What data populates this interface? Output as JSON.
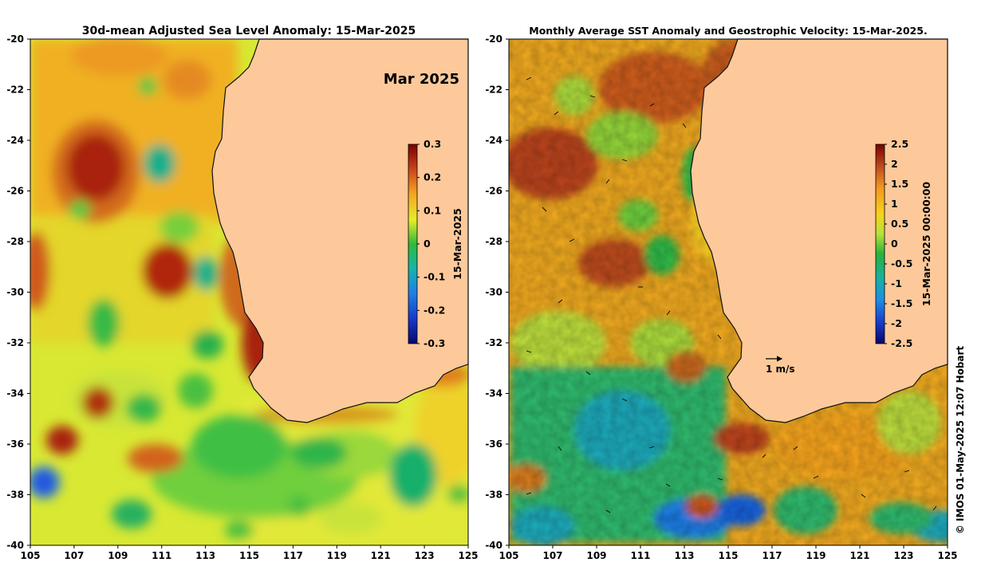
{
  "credit": "© IMOS 01-May-2025 12:07 Hobart",
  "chart_data": [
    {
      "type": "heatmap",
      "title": "30d-mean Adjusted Sea Level Anomaly: 15-Mar-2025",
      "annotation": "Mar 2025",
      "colorbar_label": "15-Mar-2025",
      "colorbar_ticks": [
        "0.3",
        "0.2",
        "0.1",
        "0",
        "-0.1",
        "-0.2",
        "-0.3"
      ],
      "colorbar_range": [
        -0.3,
        0.3
      ],
      "x_range": [
        105,
        125
      ],
      "y_range": [
        -40,
        -20
      ],
      "x_ticks": [
        105,
        107,
        109,
        111,
        113,
        115,
        117,
        119,
        121,
        123,
        125
      ],
      "y_ticks": [
        -20,
        -22,
        -24,
        -26,
        -28,
        -30,
        -32,
        -34,
        -36,
        -38,
        -40
      ],
      "features": [
        {
          "name": "warm eddy",
          "lon": 108.3,
          "lat": -25.4,
          "value": 0.28
        },
        {
          "name": "warm eddy",
          "lon": 110.9,
          "lat": -29.6,
          "value": 0.3
        },
        {
          "name": "warm eddy",
          "lon": 108.1,
          "lat": -34.4,
          "value": 0.24
        },
        {
          "name": "warm eddy",
          "lon": 106.4,
          "lat": -35.9,
          "value": 0.26
        },
        {
          "name": "warm eddy",
          "lon": 105.3,
          "lat": -29.0,
          "value": 0.2
        },
        {
          "name": "warm eddy",
          "lon": 111.0,
          "lat": -36.6,
          "value": 0.18
        },
        {
          "name": "warm eddy",
          "lon": 111.6,
          "lat": -21.0,
          "value": 0.16
        },
        {
          "name": "cold eddy",
          "lon": 110.6,
          "lat": -24.9,
          "value": -0.05
        },
        {
          "name": "cold eddy",
          "lon": 112.9,
          "lat": -29.3,
          "value": -0.05
        },
        {
          "name": "cold eddy",
          "lon": 105.6,
          "lat": -37.6,
          "value": -0.18
        },
        {
          "name": "cold eddy",
          "lon": 122.5,
          "lat": -37.5,
          "value": -0.02
        },
        {
          "name": "cold eddy",
          "lon": 109.0,
          "lat": -38.8,
          "value": -0.02
        },
        {
          "name": "cold eddy",
          "lon": 113.1,
          "lat": -32.0,
          "value": -0.03
        },
        {
          "name": "cold eddy",
          "lon": 116.4,
          "lat": -37.0,
          "value": -0.02
        },
        {
          "name": "cold eddy",
          "lon": 110.1,
          "lat": -34.9,
          "value": -0.03
        },
        {
          "name": "cold eddy",
          "lon": 114.4,
          "lat": -37.5,
          "value": -0.04
        }
      ]
    },
    {
      "type": "heatmap",
      "title": "Monthly Average SST Anomaly  and Geostrophic Velocity: 15-Mar-2025.",
      "vector_scale_label": "1 m/s",
      "vector_scale_value": 1,
      "colorbar_label": "15-Mar-2025 00:00:00",
      "colorbar_ticks": [
        "2.5",
        "2",
        "1.5",
        "1",
        "0.5",
        "0",
        "-0.5",
        "-1",
        "-1.5",
        "-2",
        "-2.5"
      ],
      "colorbar_range": [
        -2.5,
        2.5
      ],
      "x_range": [
        105,
        125
      ],
      "y_range": [
        -40,
        -20
      ],
      "x_ticks": [
        105,
        107,
        109,
        111,
        113,
        115,
        117,
        119,
        121,
        123,
        125
      ],
      "y_ticks": [
        -20,
        -22,
        -24,
        -26,
        -28,
        -30,
        -32,
        -34,
        -36,
        -38,
        -40
      ],
      "features": [
        {
          "name": "warm anomaly",
          "lon": 106.5,
          "lat": -25.0,
          "value": 2.2
        },
        {
          "name": "warm anomaly",
          "lon": 109.5,
          "lat": -29.5,
          "value": 2.0
        },
        {
          "name": "warm anomaly",
          "lon": 112.0,
          "lat": -22.5,
          "value": 1.8
        },
        {
          "name": "warm anomaly",
          "lon": 115.6,
          "lat": -36.0,
          "value": 2.2
        },
        {
          "name": "warm anomaly",
          "lon": 113.8,
          "lat": -39.0,
          "value": 2.0
        },
        {
          "name": "warm anomaly",
          "lon": 107.0,
          "lat": -38.5,
          "value": 1.5
        },
        {
          "name": "cold anomaly",
          "lon": 111.0,
          "lat": -36.5,
          "value": -0.8
        },
        {
          "name": "cold anomaly",
          "lon": 114.5,
          "lat": -39.5,
          "value": -1.3
        },
        {
          "name": "cold anomaly",
          "lon": 108.5,
          "lat": -37.5,
          "value": -0.6
        },
        {
          "name": "cold anomaly",
          "lon": 116.0,
          "lat": -39.3,
          "value": -1.1
        },
        {
          "name": "cold anomaly",
          "lon": 123.5,
          "lat": -39.5,
          "value": -0.8
        }
      ]
    }
  ]
}
